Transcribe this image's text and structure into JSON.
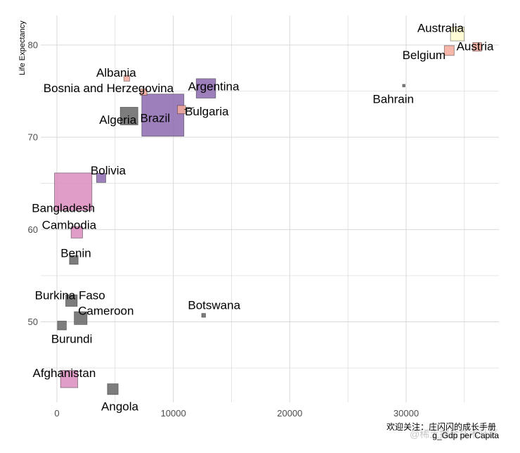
{
  "chart_data": {
    "type": "scatter",
    "title": "",
    "xlabel": "g_Gdp per Capita",
    "ylabel": "Life Expectancy",
    "xlim": [
      -1500,
      38000
    ],
    "ylim": [
      41.5,
      84
    ],
    "x_ticks": [
      0,
      10000,
      20000,
      30000
    ],
    "y_ticks": [
      50,
      60,
      70,
      80
    ],
    "grid": true,
    "legend": "none",
    "points": [
      {
        "country": "Afghanistan",
        "x": 1050,
        "y": 43.8,
        "size": 31.9,
        "color": "#d98cbd"
      },
      {
        "country": "Albania",
        "x": 6000,
        "y": 76.4,
        "size": 3.6,
        "color": "#f4a99b"
      },
      {
        "country": "Algeria",
        "x": 6200,
        "y": 72.3,
        "size": 33.3,
        "color": "#666666"
      },
      {
        "country": "Angola",
        "x": 4800,
        "y": 42.7,
        "size": 12.4,
        "color": "#666666"
      },
      {
        "country": "Argentina",
        "x": 12800,
        "y": 75.3,
        "size": 40.3,
        "color": "#8c68b0"
      },
      {
        "country": "Australia",
        "x": 34400,
        "y": 81.2,
        "size": 20.4,
        "color": "#fffacd"
      },
      {
        "country": "Austria",
        "x": 36100,
        "y": 79.8,
        "size": 8.2,
        "color": "#f4a99b"
      },
      {
        "country": "Bahrain",
        "x": 29800,
        "y": 75.6,
        "size": 0.7,
        "color": "#666666"
      },
      {
        "country": "Bangladesh",
        "x": 1400,
        "y": 64.1,
        "size": 150.4,
        "color": "#d98cbd"
      },
      {
        "country": "Belgium",
        "x": 33700,
        "y": 79.4,
        "size": 10.4,
        "color": "#f4a99b"
      },
      {
        "country": "Benin",
        "x": 1450,
        "y": 56.7,
        "size": 8.1,
        "color": "#666666"
      },
      {
        "country": "Bolivia",
        "x": 3800,
        "y": 65.6,
        "size": 9.1,
        "color": "#8c68b0"
      },
      {
        "country": "Bosnia and Herzegovina",
        "x": 7450,
        "y": 74.9,
        "size": 4.6,
        "color": "#f4a99b"
      },
      {
        "country": "Botswana",
        "x": 12600,
        "y": 50.7,
        "size": 1.6,
        "color": "#666666"
      },
      {
        "country": "Brazil",
        "x": 9100,
        "y": 72.4,
        "size": 190.0,
        "color": "#8c68b0"
      },
      {
        "country": "Bulgaria",
        "x": 10700,
        "y": 73.0,
        "size": 7.3,
        "color": "#f4a99b"
      },
      {
        "country": "Burkina Faso",
        "x": 1250,
        "y": 52.3,
        "size": 14.3,
        "color": "#666666"
      },
      {
        "country": "Burundi",
        "x": 430,
        "y": 49.6,
        "size": 8.4,
        "color": "#666666"
      },
      {
        "country": "Cambodia",
        "x": 1710,
        "y": 59.7,
        "size": 14.1,
        "color": "#d98cbd"
      },
      {
        "country": "Cameroon",
        "x": 2040,
        "y": 50.4,
        "size": 17.7,
        "color": "#666666"
      }
    ],
    "colors": {
      "grid": "#d9d9d9",
      "mark_stroke": "#000000"
    }
  },
  "watermark": {
    "line1": "欢迎关注：庄闪闪的成长手册",
    "line2_faint": "@稀土掘金技术社区"
  }
}
